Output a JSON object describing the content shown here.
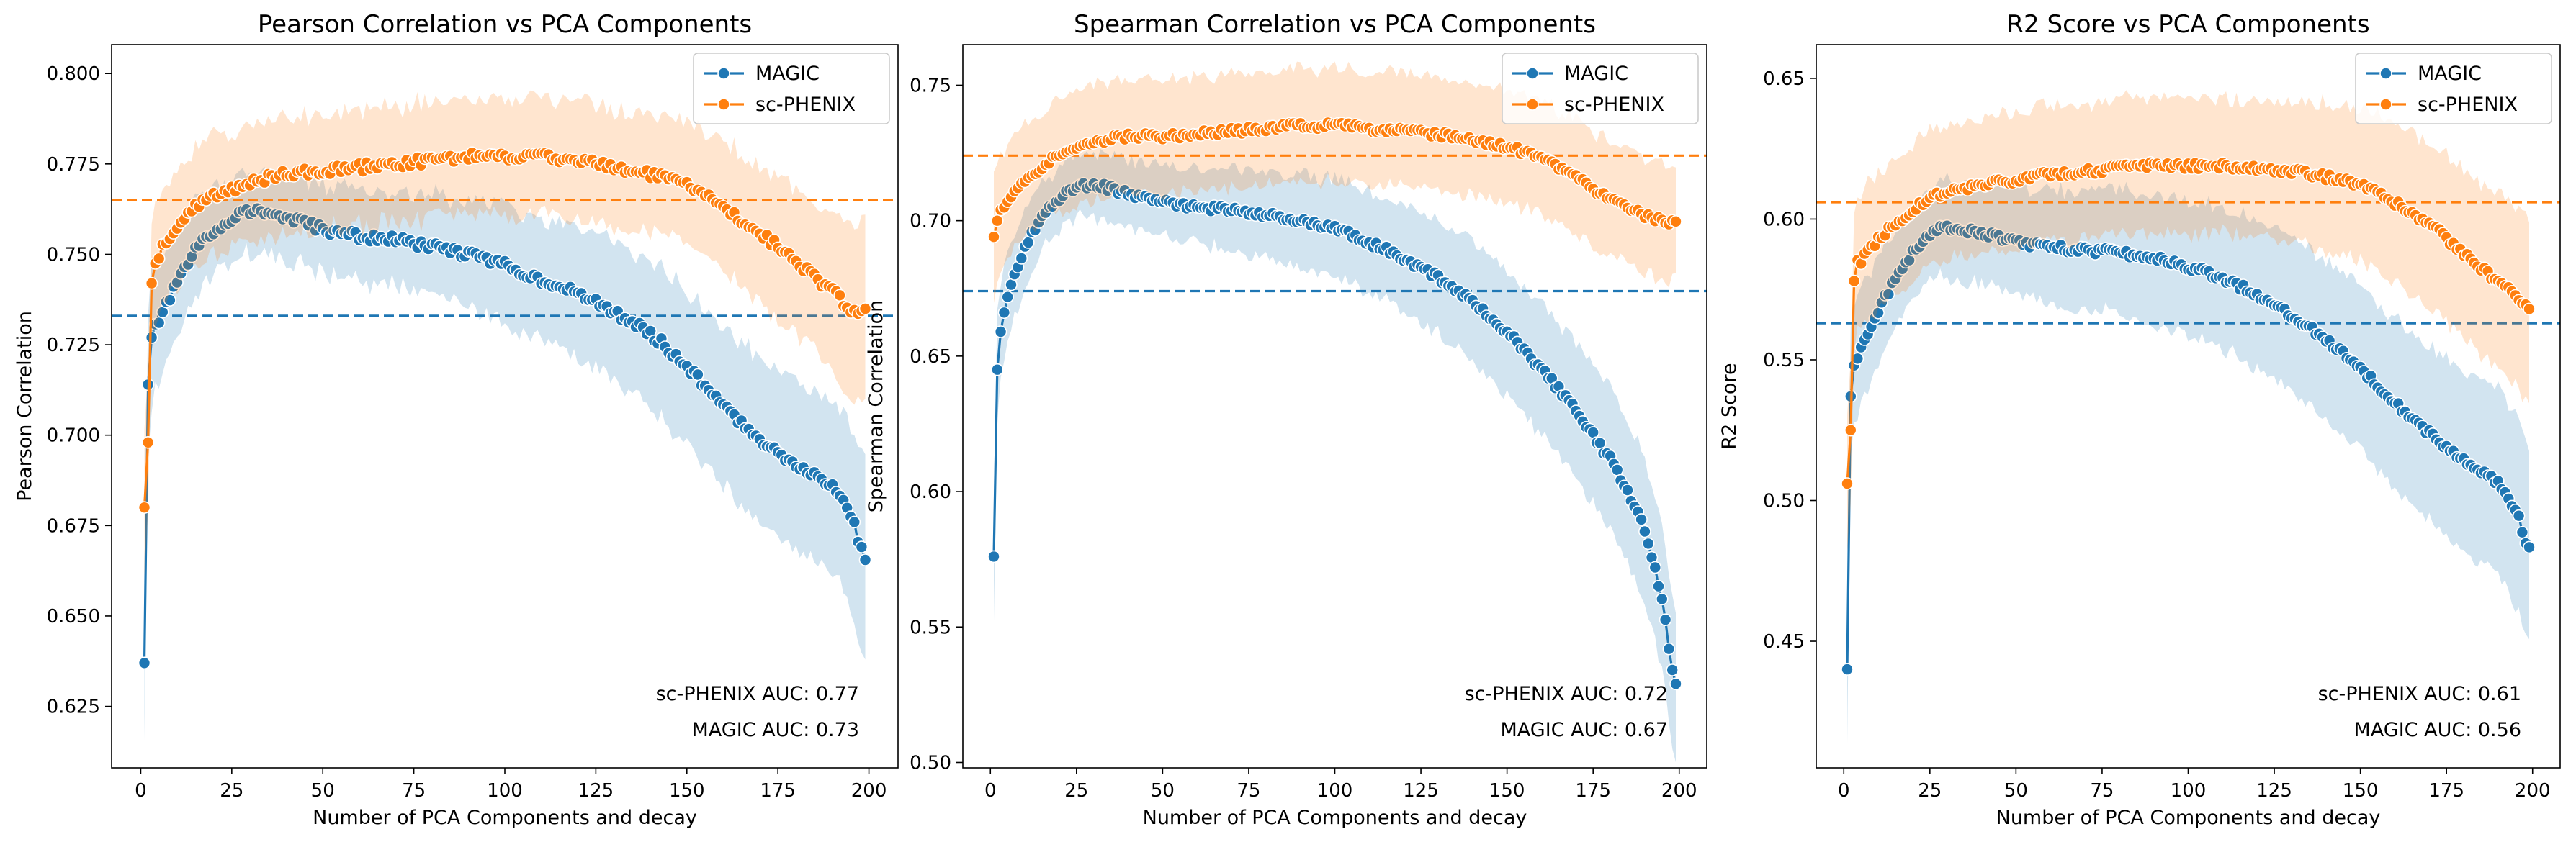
{
  "figure": {
    "colors": {
      "magic": "#1f77b4",
      "phenix": "#ff7f0e"
    },
    "legend_placement": "upper right"
  },
  "chart_data": [
    {
      "type": "line",
      "title": "Pearson Correlation vs PCA Components",
      "xlabel": "Number of PCA Components and decay",
      "ylabel": "Pearson Correlation",
      "xlim": [
        -8,
        208
      ],
      "ylim": [
        0.608,
        0.808
      ],
      "xticks": [
        0,
        25,
        50,
        75,
        100,
        125,
        150,
        175,
        200
      ],
      "xtick_labels": [
        "0",
        "25",
        "50",
        "75",
        "100",
        "125",
        "150",
        "175",
        "200"
      ],
      "yticks": [
        0.625,
        0.65,
        0.675,
        0.7,
        0.725,
        0.75,
        0.775,
        0.8
      ],
      "ytick_labels": [
        "0.625",
        "0.650",
        "0.675",
        "0.700",
        "0.725",
        "0.750",
        "0.775",
        "0.800"
      ],
      "series": [
        {
          "name": "MAGIC",
          "color": "#1f77b4",
          "x": [
            1,
            2,
            3,
            5,
            10,
            15,
            20,
            25,
            30,
            40,
            50,
            60,
            70,
            80,
            90,
            100,
            110,
            120,
            130,
            140,
            150,
            160,
            170,
            180,
            190,
            195,
            199
          ],
          "y": [
            0.637,
            0.714,
            0.727,
            0.732,
            0.742,
            0.751,
            0.756,
            0.76,
            0.762,
            0.76,
            0.757,
            0.755,
            0.754,
            0.752,
            0.75,
            0.747,
            0.743,
            0.739,
            0.734,
            0.728,
            0.719,
            0.708,
            0.699,
            0.692,
            0.686,
            0.678,
            0.666
          ],
          "band_width": [
            0.024,
            0.02,
            0.019,
            0.017,
            0.015,
            0.013,
            0.012,
            0.011,
            0.011,
            0.012,
            0.012,
            0.013,
            0.013,
            0.014,
            0.015,
            0.016,
            0.017,
            0.018,
            0.019,
            0.02,
            0.021,
            0.022,
            0.023,
            0.023,
            0.024,
            0.025,
            0.03
          ],
          "hline": 0.733
        },
        {
          "name": "sc-PHENIX",
          "color": "#ff7f0e",
          "x": [
            1,
            2,
            3,
            5,
            10,
            15,
            20,
            25,
            30,
            40,
            50,
            60,
            70,
            80,
            90,
            100,
            110,
            120,
            130,
            140,
            150,
            160,
            170,
            180,
            190,
            195,
            199
          ],
          "y": [
            0.68,
            0.698,
            0.742,
            0.75,
            0.758,
            0.763,
            0.766,
            0.768,
            0.77,
            0.772,
            0.773,
            0.774,
            0.775,
            0.776,
            0.777,
            0.777,
            0.777,
            0.776,
            0.774,
            0.772,
            0.769,
            0.763,
            0.756,
            0.748,
            0.74,
            0.735,
            0.734
          ],
          "band_width": [
            0.02,
            0.018,
            0.016,
            0.016,
            0.016,
            0.016,
            0.016,
            0.016,
            0.016,
            0.016,
            0.016,
            0.016,
            0.016,
            0.016,
            0.016,
            0.016,
            0.016,
            0.016,
            0.016,
            0.016,
            0.017,
            0.018,
            0.019,
            0.02,
            0.022,
            0.024,
            0.025
          ],
          "hline": 0.765
        }
      ],
      "annotations": [
        "sc-PHENIX AUC: 0.77",
        "MAGIC AUC: 0.73"
      ]
    },
    {
      "type": "line",
      "title": "Spearman Correlation vs PCA Components",
      "xlabel": "Number of PCA Components and decay",
      "ylabel": "Spearman Correlation",
      "xlim": [
        -8,
        208
      ],
      "ylim": [
        0.498,
        0.765
      ],
      "xticks": [
        0,
        25,
        50,
        75,
        100,
        125,
        150,
        175,
        200
      ],
      "xtick_labels": [
        "0",
        "25",
        "50",
        "75",
        "100",
        "125",
        "150",
        "175",
        "200"
      ],
      "yticks": [
        0.5,
        0.55,
        0.6,
        0.65,
        0.7,
        0.75
      ],
      "ytick_labels": [
        "0.50",
        "0.55",
        "0.60",
        "0.65",
        "0.70",
        "0.75"
      ],
      "series": [
        {
          "name": "MAGIC",
          "color": "#1f77b4",
          "x": [
            1,
            2,
            3,
            5,
            10,
            15,
            20,
            25,
            30,
            40,
            50,
            60,
            70,
            80,
            90,
            100,
            110,
            120,
            130,
            140,
            150,
            160,
            170,
            180,
            185,
            190,
            195,
            199
          ],
          "y": [
            0.576,
            0.645,
            0.659,
            0.672,
            0.69,
            0.701,
            0.708,
            0.712,
            0.713,
            0.71,
            0.707,
            0.705,
            0.704,
            0.702,
            0.7,
            0.697,
            0.692,
            0.686,
            0.679,
            0.67,
            0.659,
            0.645,
            0.63,
            0.612,
            0.6,
            0.585,
            0.56,
            0.528
          ],
          "band_width": [
            0.022,
            0.02,
            0.018,
            0.016,
            0.014,
            0.012,
            0.011,
            0.011,
            0.012,
            0.012,
            0.013,
            0.014,
            0.015,
            0.016,
            0.017,
            0.018,
            0.019,
            0.02,
            0.021,
            0.022,
            0.023,
            0.024,
            0.025,
            0.026,
            0.026,
            0.027,
            0.027,
            0.028
          ],
          "hline": 0.674
        },
        {
          "name": "sc-PHENIX",
          "color": "#ff7f0e",
          "x": [
            1,
            2,
            3,
            5,
            10,
            15,
            20,
            25,
            30,
            40,
            50,
            60,
            70,
            80,
            90,
            100,
            110,
            120,
            130,
            140,
            150,
            160,
            170,
            180,
            190,
            195,
            199
          ],
          "y": [
            0.694,
            0.7,
            0.704,
            0.708,
            0.714,
            0.72,
            0.724,
            0.727,
            0.729,
            0.731,
            0.731,
            0.732,
            0.733,
            0.734,
            0.735,
            0.735,
            0.734,
            0.733,
            0.732,
            0.73,
            0.727,
            0.723,
            0.716,
            0.708,
            0.702,
            0.7,
            0.699
          ],
          "band_width": [
            0.022,
            0.021,
            0.021,
            0.021,
            0.021,
            0.021,
            0.021,
            0.021,
            0.021,
            0.021,
            0.021,
            0.021,
            0.021,
            0.021,
            0.021,
            0.021,
            0.021,
            0.021,
            0.021,
            0.021,
            0.021,
            0.021,
            0.021,
            0.021,
            0.021,
            0.021,
            0.021
          ],
          "hline": 0.724
        }
      ],
      "annotations": [
        "sc-PHENIX AUC: 0.72",
        "MAGIC AUC: 0.67"
      ]
    },
    {
      "type": "line",
      "title": "R2 Score vs PCA Components",
      "xlabel": "Number of PCA Components and decay",
      "ylabel": "R2 Score",
      "xlim": [
        -8,
        208
      ],
      "ylim": [
        0.405,
        0.662
      ],
      "xticks": [
        0,
        25,
        50,
        75,
        100,
        125,
        150,
        175,
        200
      ],
      "xtick_labels": [
        "0",
        "25",
        "50",
        "75",
        "100",
        "125",
        "150",
        "175",
        "200"
      ],
      "yticks": [
        0.45,
        0.5,
        0.55,
        0.6,
        0.65
      ],
      "ytick_labels": [
        "0.45",
        "0.50",
        "0.55",
        "0.60",
        "0.65"
      ],
      "series": [
        {
          "name": "MAGIC",
          "color": "#1f77b4",
          "x": [
            1,
            2,
            3,
            5,
            10,
            15,
            20,
            25,
            30,
            40,
            50,
            60,
            70,
            80,
            90,
            100,
            110,
            120,
            130,
            140,
            150,
            160,
            170,
            180,
            190,
            195,
            199
          ],
          "y": [
            0.44,
            0.537,
            0.548,
            0.555,
            0.567,
            0.579,
            0.588,
            0.594,
            0.597,
            0.595,
            0.592,
            0.59,
            0.589,
            0.588,
            0.586,
            0.583,
            0.579,
            0.573,
            0.566,
            0.557,
            0.547,
            0.535,
            0.524,
            0.514,
            0.506,
            0.497,
            0.483
          ],
          "band_width": [
            0.028,
            0.024,
            0.022,
            0.021,
            0.019,
            0.017,
            0.016,
            0.016,
            0.017,
            0.018,
            0.019,
            0.02,
            0.021,
            0.022,
            0.023,
            0.024,
            0.025,
            0.026,
            0.027,
            0.028,
            0.029,
            0.03,
            0.031,
            0.032,
            0.033,
            0.034,
            0.035
          ],
          "hline": 0.563
        },
        {
          "name": "sc-PHENIX",
          "color": "#ff7f0e",
          "x": [
            1,
            2,
            3,
            5,
            10,
            15,
            20,
            25,
            30,
            40,
            50,
            60,
            70,
            80,
            90,
            100,
            110,
            120,
            130,
            140,
            150,
            160,
            170,
            180,
            190,
            195,
            199
          ],
          "y": [
            0.506,
            0.525,
            0.578,
            0.585,
            0.593,
            0.598,
            0.603,
            0.607,
            0.61,
            0.612,
            0.614,
            0.616,
            0.617,
            0.618,
            0.619,
            0.619,
            0.619,
            0.618,
            0.617,
            0.615,
            0.612,
            0.606,
            0.598,
            0.588,
            0.578,
            0.573,
            0.569
          ],
          "band_width": [
            0.025,
            0.024,
            0.024,
            0.024,
            0.024,
            0.024,
            0.024,
            0.024,
            0.024,
            0.024,
            0.024,
            0.024,
            0.024,
            0.024,
            0.024,
            0.024,
            0.024,
            0.024,
            0.025,
            0.026,
            0.027,
            0.028,
            0.029,
            0.03,
            0.031,
            0.032,
            0.033
          ],
          "hline": 0.606
        }
      ],
      "annotations": [
        "sc-PHENIX AUC: 0.61",
        "MAGIC AUC: 0.56"
      ]
    }
  ]
}
